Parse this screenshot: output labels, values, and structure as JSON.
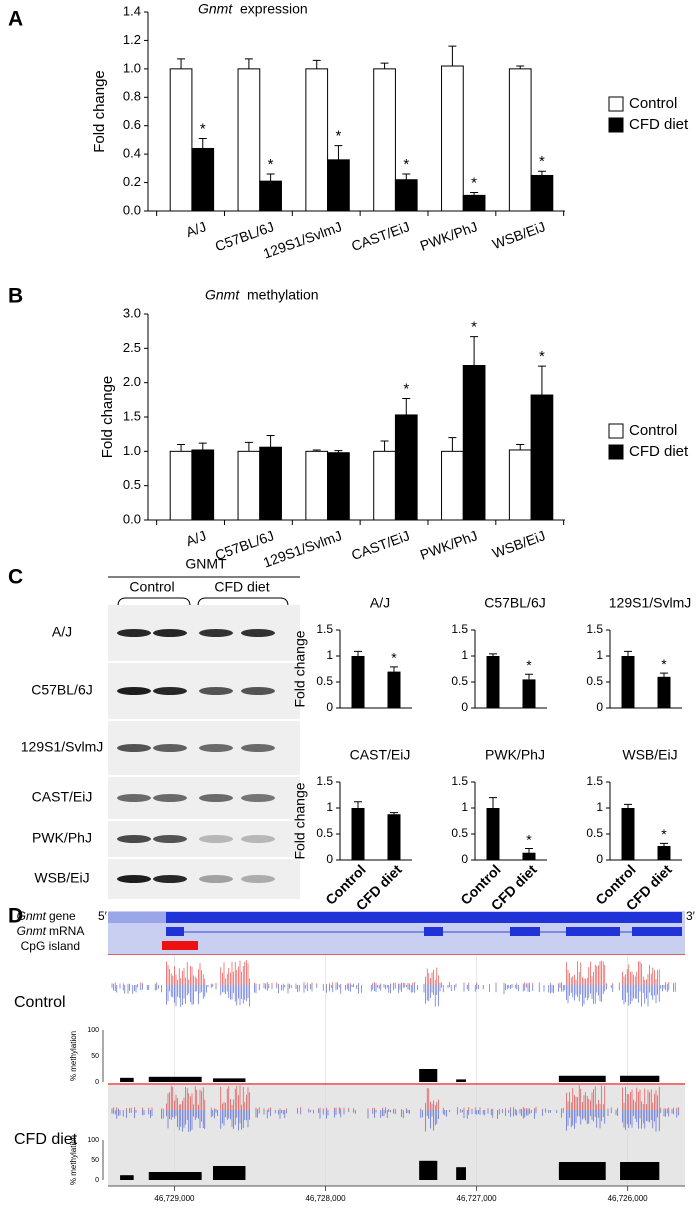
{
  "panels": [
    "A",
    "B",
    "C",
    "D"
  ],
  "blot": {
    "title": "GNMT",
    "groups": [
      "Control",
      "CFD diet"
    ],
    "rows": [
      "A/J",
      "C57BL/6J",
      "129S1/SvlmJ",
      "CAST/EiJ",
      "PWK/PhJ",
      "WSB/EiJ"
    ]
  },
  "gene_track": {
    "gene": [
      "Gnmt",
      "gene"
    ],
    "mrna": [
      "Gnmt",
      "mRNA"
    ],
    "cpg": "CpG island",
    "five": "5′",
    "three": "3′"
  },
  "chart_data": [
    {
      "type": "grouped-bar",
      "title_italic": "Gnmt",
      "title": "expression",
      "ylabel": "Fold change",
      "categories": [
        "A/J",
        "C57BL/6J",
        "129S1/SvlmJ",
        "CAST/EiJ",
        "PWK/PhJ",
        "WSB/EiJ"
      ],
      "series": [
        {
          "name": "Control",
          "color": "#ffffff",
          "values": [
            1.0,
            1.0,
            1.0,
            1.0,
            1.02,
            1.0
          ],
          "errors": [
            0.07,
            0.07,
            0.06,
            0.04,
            0.14,
            0.02
          ]
        },
        {
          "name": "CFD diet",
          "color": "#000000",
          "values": [
            0.44,
            0.21,
            0.36,
            0.22,
            0.11,
            0.25
          ],
          "errors": [
            0.07,
            0.05,
            0.1,
            0.04,
            0.02,
            0.03
          ],
          "stars": [
            "*",
            "*",
            "*",
            "*",
            "*",
            "*"
          ]
        }
      ],
      "ylim": [
        0,
        1.4
      ],
      "yticks": [
        {
          "value": 0,
          "label": "0.0"
        },
        0.2,
        0.4,
        0.6,
        0.8,
        {
          "value": 1,
          "label": "1.0"
        },
        1.2,
        1.4
      ],
      "legend": "right"
    },
    {
      "type": "grouped-bar",
      "title_italic": "Gnmt",
      "title": "methylation",
      "ylabel": "Fold change",
      "categories": [
        "A/J",
        "C57BL/6J",
        "129S1/SvlmJ",
        "CAST/EiJ",
        "PWK/PhJ",
        "WSB/EiJ"
      ],
      "series": [
        {
          "name": "Control",
          "color": "#ffffff",
          "values": [
            1.0,
            1.0,
            1.0,
            1.0,
            1.0,
            1.02
          ],
          "errors": [
            0.1,
            0.13,
            0.02,
            0.15,
            0.2,
            0.08
          ]
        },
        {
          "name": "CFD diet",
          "color": "#000000",
          "values": [
            1.02,
            1.06,
            0.98,
            1.53,
            2.25,
            1.82
          ],
          "errors": [
            0.1,
            0.17,
            0.03,
            0.24,
            0.42,
            0.42
          ],
          "stars": [
            null,
            null,
            null,
            "*",
            "*",
            "*"
          ]
        }
      ],
      "ylim": [
        0,
        3
      ],
      "yticks": [
        {
          "value": 0,
          "label": "0.0"
        },
        0.5,
        {
          "value": 1,
          "label": "1.0"
        },
        1.5,
        {
          "value": 2,
          "label": "2.0"
        },
        2.5,
        {
          "value": 3,
          "label": "3.0"
        }
      ],
      "legend": "right"
    },
    {
      "type": "bar",
      "title": "A/J",
      "ylabel": "Fold change",
      "categories": [
        null,
        null
      ],
      "color": "#000000",
      "values": [
        1.0,
        0.7
      ],
      "errors": [
        0.09,
        0.09
      ],
      "stars": [
        null,
        "*"
      ],
      "ylim": [
        0,
        1.5
      ],
      "yticks": [
        0,
        0.5,
        1,
        1.5
      ]
    },
    {
      "type": "bar",
      "title": "C57BL/6J",
      "categories": [
        null,
        null
      ],
      "color": "#000000",
      "values": [
        1.0,
        0.55
      ],
      "errors": [
        0.04,
        0.1
      ],
      "stars": [
        null,
        "*"
      ],
      "ylim": [
        0,
        1.5
      ],
      "yticks": [
        0,
        0.5,
        1,
        1.5
      ]
    },
    {
      "type": "bar",
      "title": "129S1/SvlmJ",
      "categories": [
        null,
        null
      ],
      "color": "#000000",
      "values": [
        1.0,
        0.6
      ],
      "errors": [
        0.09,
        0.07
      ],
      "stars": [
        null,
        "*"
      ],
      "ylim": [
        0,
        1.5
      ],
      "yticks": [
        0,
        0.5,
        1,
        1.5
      ]
    },
    {
      "type": "bar",
      "title": "CAST/EiJ",
      "ylabel": "Fold change",
      "categories": [
        "Control",
        "CFD diet"
      ],
      "color": "#000000",
      "values": [
        1.0,
        0.88
      ],
      "errors": [
        0.12,
        0.03
      ],
      "ylim": [
        0,
        1.5
      ],
      "yticks": [
        0,
        0.5,
        1,
        1.5
      ]
    },
    {
      "type": "bar",
      "title": "PWK/PhJ",
      "categories": [
        "Control",
        "CFD diet"
      ],
      "color": "#000000",
      "values": [
        1.0,
        0.14
      ],
      "errors": [
        0.2,
        0.08
      ],
      "stars": [
        null,
        "*"
      ],
      "ylim": [
        0,
        1.5
      ],
      "yticks": [
        0,
        0.5,
        1,
        1.5
      ]
    },
    {
      "type": "bar",
      "title": "WSB/EiJ",
      "categories": [
        "Control",
        "CFD diet"
      ],
      "color": "#000000",
      "values": [
        1.0,
        0.27
      ],
      "errors": [
        0.07,
        0.05
      ],
      "stars": [
        null,
        "*"
      ],
      "ylim": [
        0,
        1.5
      ],
      "yticks": [
        0,
        0.5,
        1,
        1.5
      ]
    },
    {
      "type": "region-bar",
      "ylabel": "% methylation",
      "color": "#000000",
      "regions": [
        [
          46729360,
          46729270
        ],
        [
          46729170,
          46728820
        ],
        [
          46728745,
          46728530
        ],
        [
          46727380,
          46727260
        ],
        [
          46727135,
          46727070
        ],
        [
          46726455,
          46726145
        ],
        [
          46726050,
          46725790
        ]
      ],
      "series": [
        {
          "name": "Control",
          "values": [
            8,
            10,
            7,
            25,
            5,
            12,
            12
          ]
        },
        {
          "name": "CFD diet",
          "values": [
            12,
            20,
            35,
            48,
            32,
            45,
            45
          ]
        }
      ],
      "xlim": [
        46729440,
        46725620
      ],
      "xticks": [
        {
          "value": 46729000,
          "label": "46,729,000"
        },
        {
          "value": 46728000,
          "label": "46,728,000"
        },
        {
          "value": 46727000,
          "label": "46,727,000"
        },
        {
          "value": 46726000,
          "label": "46,726,000"
        }
      ],
      "ylim": [
        0,
        100
      ],
      "yticks": [
        0,
        50,
        100
      ]
    }
  ]
}
